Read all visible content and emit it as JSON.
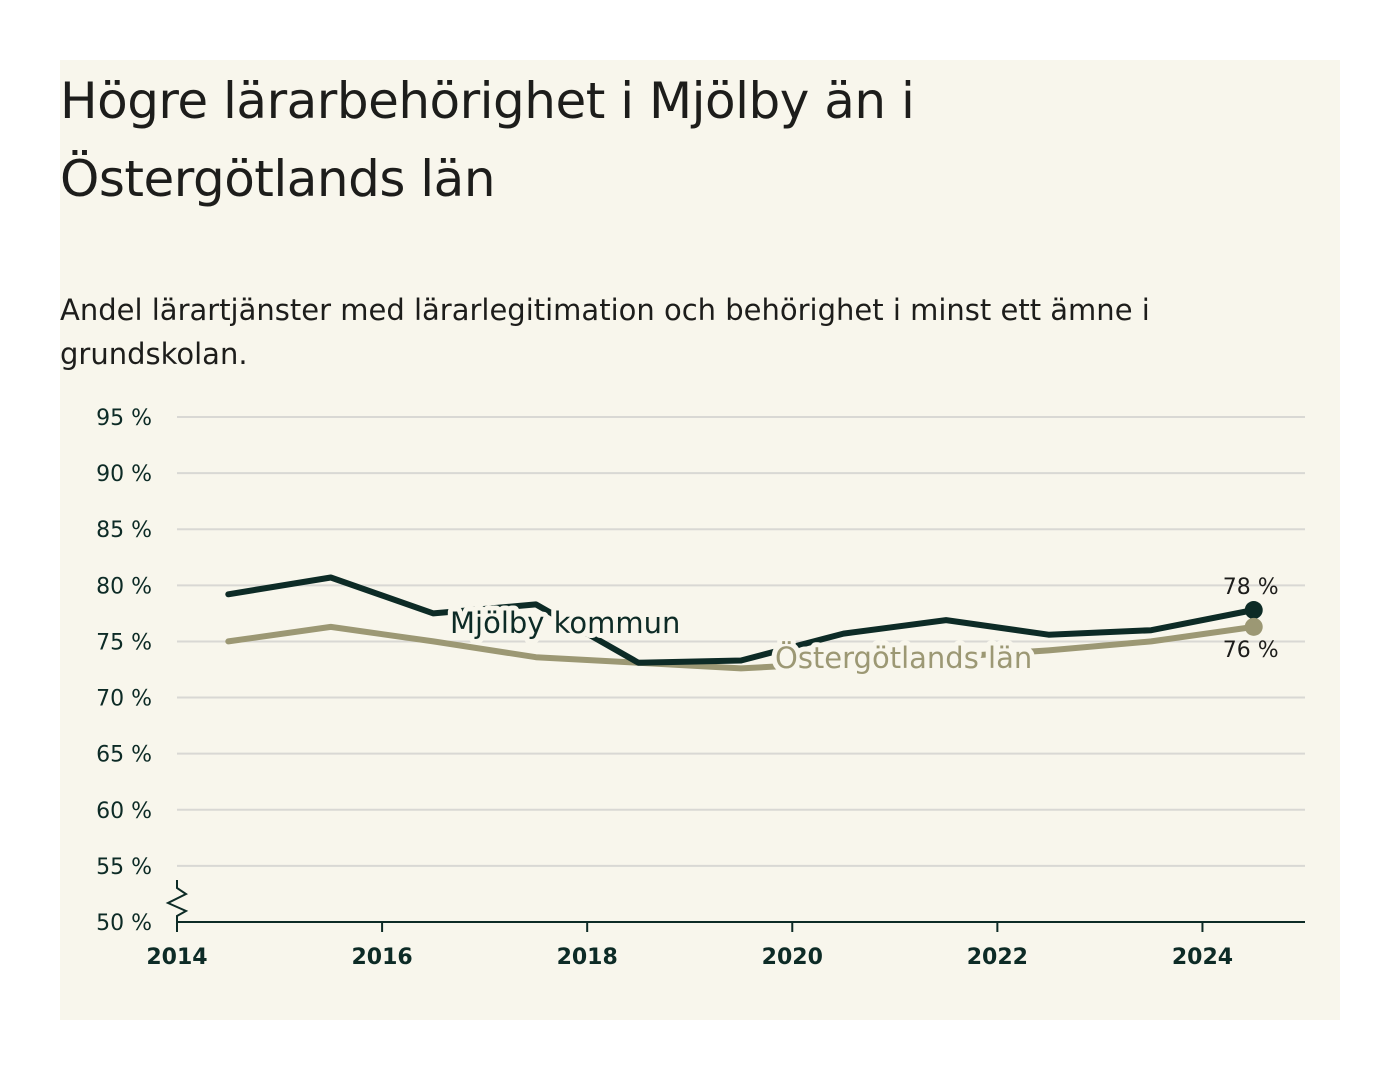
{
  "header": {
    "title": "Högre lärarbehörighet i Mjölby än i Östergötlands län",
    "subtitle": "Andel lärartjänster med lärarlegitimation och behörighet i minst ett ämne i grundskolan."
  },
  "chart_data": {
    "type": "line",
    "title": "Högre lärarbehörighet i Mjölby än i Östergötlands län",
    "subtitle": "Andel lärartjänster med lärarlegitimation och behörighet i minst ett ämne i grundskolan.",
    "xlabel": "",
    "ylabel": "",
    "x_ticks": [
      "2014",
      "2016",
      "2018",
      "2020",
      "2022",
      "2024"
    ],
    "y_ticks": [
      "50 %",
      "55 %",
      "60 %",
      "65 %",
      "70 %",
      "75 %",
      "80 %",
      "85 %",
      "90 %",
      "95 %"
    ],
    "xlim": [
      2014,
      2025
    ],
    "ylim": [
      50,
      95
    ],
    "y_axis_break": true,
    "grid": true,
    "legend": "inline",
    "series": [
      {
        "name": "Mjölby kommun",
        "color": "#0d2b26",
        "x": [
          2014.5,
          2015.5,
          2016.5,
          2017.5,
          2018.5,
          2019.5,
          2020.5,
          2021.5,
          2022.5,
          2023.5,
          2024.5
        ],
        "values": [
          79.2,
          80.7,
          77.5,
          78.3,
          73.1,
          73.3,
          75.7,
          76.9,
          75.6,
          76.0,
          77.8
        ],
        "end_label": "78 %"
      },
      {
        "name": "Östergötlands län",
        "color": "#9c9874",
        "x": [
          2014.5,
          2015.5,
          2016.5,
          2017.5,
          2018.5,
          2019.5,
          2020.5,
          2021.5,
          2022.5,
          2023.5,
          2024.5
        ],
        "values": [
          75.0,
          76.3,
          75.0,
          73.6,
          73.1,
          72.6,
          73.1,
          73.6,
          74.2,
          75.0,
          76.3
        ],
        "end_label": "76 %"
      }
    ]
  }
}
